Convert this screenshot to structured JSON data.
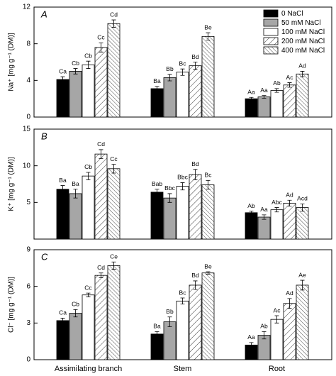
{
  "chart_data": [
    {
      "type": "bar",
      "panel_label": "A",
      "ylabel": "Na⁺ [mg g⁻¹ (DM)]",
      "categories": [
        null,
        null,
        null
      ],
      "ylim": [
        0,
        12
      ],
      "yticks": [
        0,
        4,
        8,
        12
      ],
      "legend": "upper right",
      "series": [
        {
          "name": "0 NaCl",
          "color": "#000000",
          "pattern": "solid",
          "values": [
            4.1,
            3.1,
            2.0
          ],
          "errors": [
            0.3,
            0.25,
            0.15
          ],
          "letters": [
            "Ca",
            "Ba",
            "Aa"
          ]
        },
        {
          "name": "50 mM NaCl",
          "color": "#a6a6a6",
          "pattern": "solid",
          "values": [
            5.0,
            4.3,
            2.2
          ],
          "errors": [
            0.3,
            0.35,
            0.15
          ],
          "letters": [
            "Cb",
            "Bb",
            "Aa"
          ]
        },
        {
          "name": "100 mM NaCl",
          "color": "#ffffff",
          "pattern": "solid",
          "values": [
            5.7,
            4.9,
            2.9
          ],
          "errors": [
            0.4,
            0.35,
            0.2
          ],
          "letters": [
            "Cb",
            "Bc",
            "Ab"
          ]
        },
        {
          "name": "200 mM NaCl",
          "color": "#ffffff",
          "pattern": "diagonal",
          "values": [
            7.6,
            5.6,
            3.5
          ],
          "errors": [
            0.5,
            0.4,
            0.25
          ],
          "letters": [
            "Cc",
            "Bd",
            "Ac"
          ]
        },
        {
          "name": "400 mM NaCl",
          "color": "#ffffff",
          "pattern": "back-diagonal",
          "values": [
            10.2,
            8.8,
            4.7
          ],
          "errors": [
            0.4,
            0.4,
            0.3
          ],
          "letters": [
            "Cd",
            "Be",
            "Ad"
          ]
        }
      ]
    },
    {
      "type": "bar",
      "panel_label": "B",
      "ylabel": "K⁺ [mg g⁻¹ (DM)]",
      "categories": [
        null,
        null,
        null
      ],
      "ylim": [
        0,
        15
      ],
      "yticks": [
        5,
        10,
        15
      ],
      "series": [
        {
          "color": "#000000",
          "pattern": "solid",
          "values": [
            6.8,
            6.4,
            3.6
          ],
          "errors": [
            0.5,
            0.4,
            0.2
          ],
          "letters": [
            "Ba",
            "Bab",
            "Ab"
          ]
        },
        {
          "color": "#a6a6a6",
          "pattern": "solid",
          "values": [
            6.2,
            5.6,
            3.0
          ],
          "errors": [
            0.6,
            0.6,
            0.3
          ],
          "letters": [
            "Ba",
            "Bbc",
            "Aa"
          ]
        },
        {
          "color": "#ffffff",
          "pattern": "solid",
          "values": [
            8.6,
            7.2,
            4.0
          ],
          "errors": [
            0.5,
            0.5,
            0.3
          ],
          "letters": [
            "Cb",
            "Bbc",
            "Abc"
          ]
        },
        {
          "color": "#ffffff",
          "pattern": "diagonal",
          "values": [
            11.6,
            8.8,
            4.9
          ],
          "errors": [
            0.6,
            0.7,
            0.4
          ],
          "letters": [
            "Cd",
            "Bd",
            "Ad"
          ]
        },
        {
          "color": "#ffffff",
          "pattern": "back-diagonal",
          "values": [
            9.6,
            7.4,
            4.3
          ],
          "errors": [
            0.6,
            0.6,
            0.5
          ],
          "letters": [
            "Cc",
            "Bc",
            "Acd"
          ]
        }
      ]
    },
    {
      "type": "bar",
      "panel_label": "C",
      "ylabel": "Cl⁻ [mg g⁻¹ (DM)]",
      "categories": [
        "Assimilating branch",
        "Stem",
        "Root"
      ],
      "ylim": [
        0,
        9
      ],
      "yticks": [
        0,
        3,
        6,
        9
      ],
      "series": [
        {
          "color": "#000000",
          "pattern": "solid",
          "values": [
            3.2,
            2.1,
            1.2
          ],
          "errors": [
            0.2,
            0.2,
            0.2
          ],
          "letters": [
            "Ca",
            "Ba",
            "Aa"
          ]
        },
        {
          "color": "#a6a6a6",
          "pattern": "solid",
          "values": [
            3.8,
            3.1,
            2.0
          ],
          "errors": [
            0.3,
            0.4,
            0.3
          ],
          "letters": [
            "Cb",
            "Bb",
            "Ab"
          ]
        },
        {
          "color": "#ffffff",
          "pattern": "solid",
          "values": [
            5.3,
            4.8,
            3.3
          ],
          "errors": [
            0.15,
            0.25,
            0.3
          ],
          "letters": [
            "Cc",
            "Bc",
            "Ac"
          ]
        },
        {
          "color": "#ffffff",
          "pattern": "diagonal",
          "values": [
            6.9,
            6.1,
            4.6
          ],
          "errors": [
            0.2,
            0.35,
            0.4
          ],
          "letters": [
            "Cd",
            "Bd",
            "Ad"
          ]
        },
        {
          "color": "#ffffff",
          "pattern": "back-diagonal",
          "values": [
            7.7,
            7.1,
            6.1
          ],
          "errors": [
            0.3,
            0.1,
            0.4
          ],
          "letters": [
            "Ce",
            "Be",
            "Ae"
          ]
        }
      ]
    }
  ]
}
